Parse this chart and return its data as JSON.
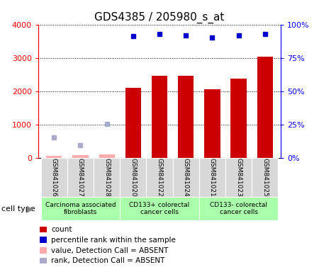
{
  "title": "GDS4385 / 205980_s_at",
  "samples": [
    "GSM841026",
    "GSM841027",
    "GSM841028",
    "GSM841020",
    "GSM841022",
    "GSM841024",
    "GSM841021",
    "GSM841023",
    "GSM841025"
  ],
  "count_values": [
    50,
    80,
    90,
    2100,
    2450,
    2450,
    2050,
    2380,
    3030
  ],
  "count_absent": [
    true,
    true,
    true,
    false,
    false,
    false,
    false,
    false,
    false
  ],
  "percentile_values": [
    null,
    null,
    null,
    91,
    93,
    92,
    90,
    92,
    93
  ],
  "rank_absent_values": [
    600,
    380,
    1020,
    null,
    null,
    null,
    null,
    null,
    null
  ],
  "ylim_left": [
    0,
    4000
  ],
  "ylim_right": [
    0,
    100
  ],
  "yticks_left": [
    0,
    1000,
    2000,
    3000,
    4000
  ],
  "yticks_right": [
    0,
    25,
    50,
    75,
    100
  ],
  "ytick_labels_left": [
    "0",
    "1000",
    "2000",
    "3000",
    "4000"
  ],
  "ytick_labels_right": [
    "0%",
    "25%",
    "50%",
    "75%",
    "100%"
  ],
  "bar_color": "#cc0000",
  "bar_absent_color": "#ffaaaa",
  "dot_color": "#0000cc",
  "dot_absent_color": "#aaaacc",
  "sample_bg_color": "#d8d8d8",
  "group_bg_color": "#aaffaa",
  "legend_items": [
    {
      "color": "#cc0000",
      "label": "count"
    },
    {
      "color": "#0000cc",
      "label": "percentile rank within the sample"
    },
    {
      "color": "#ffaaaa",
      "label": "value, Detection Call = ABSENT"
    },
    {
      "color": "#aaaacc",
      "label": "rank, Detection Call = ABSENT"
    }
  ],
  "groups": [
    {
      "label": "Carcinoma associated\nfibroblasts",
      "start": 0,
      "end": 3
    },
    {
      "label": "CD133+ colorectal\ncancer cells",
      "start": 3,
      "end": 6
    },
    {
      "label": "CD133- colorectal\ncancer cells",
      "start": 6,
      "end": 9
    }
  ],
  "cell_type_label": "cell type"
}
